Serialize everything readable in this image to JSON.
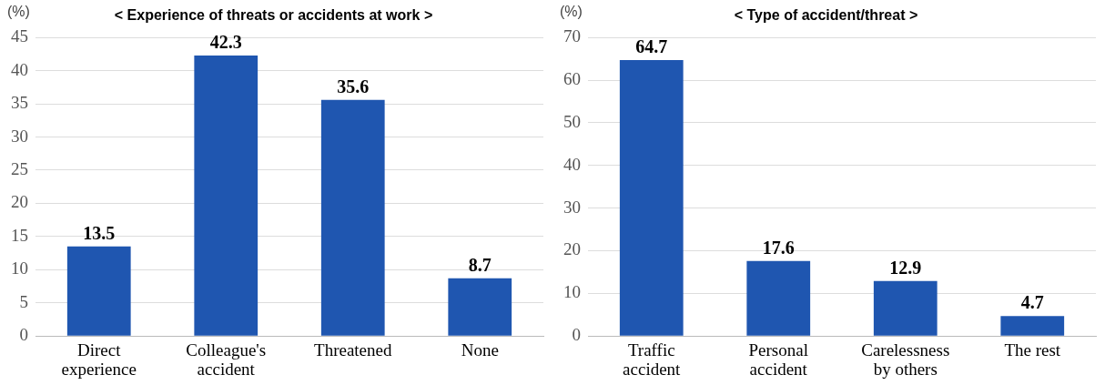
{
  "chart_data": [
    {
      "type": "bar",
      "title": "< Experience of threats or accidents at work >",
      "ylabel": "(%)",
      "categories": [
        "Direct experience",
        "Colleague's accident",
        "Threatened",
        "None"
      ],
      "values": [
        13.5,
        42.3,
        35.6,
        8.7
      ],
      "color": "#1f56b0",
      "ylim": [
        0,
        45
      ],
      "yticks": [
        0,
        5,
        10,
        15,
        20,
        25,
        30,
        35,
        40,
        45
      ],
      "grid": "y",
      "data_labels": true
    },
    {
      "type": "bar",
      "title": "< Type of accident/threat >",
      "ylabel": "(%)",
      "categories": [
        "Traffic accident",
        "Personal accident",
        "Carelessness by others",
        "The rest"
      ],
      "values": [
        64.7,
        17.6,
        12.9,
        4.7
      ],
      "color": "#1f56b0",
      "ylim": [
        0,
        70
      ],
      "yticks": [
        0,
        10,
        20,
        30,
        40,
        50,
        60,
        70
      ],
      "grid": "y",
      "data_labels": true
    }
  ]
}
